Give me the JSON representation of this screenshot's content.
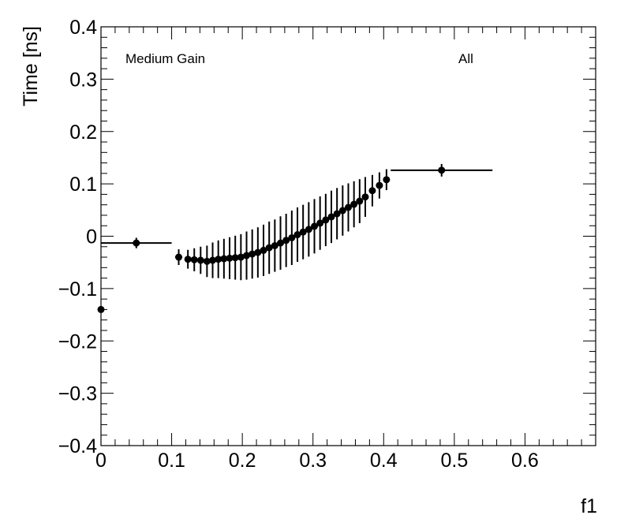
{
  "chart_data": {
    "type": "scatter",
    "xlabel": "f1",
    "ylabel": "Time [ns]",
    "xlim": [
      0,
      0.7
    ],
    "ylim": [
      -0.4,
      0.4
    ],
    "x_ticks": [
      "0",
      "0.1",
      "0.2",
      "0.3",
      "0.4",
      "0.5",
      "0.6"
    ],
    "x_tick_values": [
      0,
      0.1,
      0.2,
      0.3,
      0.4,
      0.5,
      0.6
    ],
    "y_ticks": [
      "0.4",
      "0.3",
      "0.2",
      "0.1",
      "0",
      "−0.1",
      "−0.2",
      "−0.3",
      "−0.4"
    ],
    "y_tick_values": [
      0.4,
      0.3,
      0.2,
      0.1,
      0,
      -0.1,
      -0.2,
      -0.3,
      -0.4
    ],
    "annotations": {
      "left": "Medium Gain",
      "right": "All"
    },
    "grid": false,
    "points": [
      {
        "x": 0.0,
        "y": -0.14,
        "xerr": [
          0,
          0
        ],
        "yerr": 0
      },
      {
        "x": 0.05,
        "y": -0.013,
        "xerr": [
          0.05,
          0.05
        ],
        "yerr": 0.01
      },
      {
        "x": 0.11,
        "y": -0.04,
        "xerr": [
          0.005,
          0.005
        ],
        "yerr": 0.015
      },
      {
        "x": 0.123,
        "y": -0.044,
        "xerr": [
          0,
          0
        ],
        "yerr": 0.018
      },
      {
        "x": 0.132,
        "y": -0.045,
        "xerr": [
          0,
          0
        ],
        "yerr": 0.022
      },
      {
        "x": 0.141,
        "y": -0.046,
        "xerr": [
          0,
          0
        ],
        "yerr": 0.026
      },
      {
        "x": 0.15,
        "y": -0.048,
        "xerr": [
          0,
          0
        ],
        "yerr": 0.03
      },
      {
        "x": 0.158,
        "y": -0.046,
        "xerr": [
          0,
          0
        ],
        "yerr": 0.034
      },
      {
        "x": 0.166,
        "y": -0.044,
        "xerr": [
          0,
          0
        ],
        "yerr": 0.036
      },
      {
        "x": 0.174,
        "y": -0.043,
        "xerr": [
          0,
          0
        ],
        "yerr": 0.038
      },
      {
        "x": 0.182,
        "y": -0.042,
        "xerr": [
          0,
          0
        ],
        "yerr": 0.04
      },
      {
        "x": 0.19,
        "y": -0.041,
        "xerr": [
          0,
          0
        ],
        "yerr": 0.042
      },
      {
        "x": 0.198,
        "y": -0.04,
        "xerr": [
          0,
          0
        ],
        "yerr": 0.044
      },
      {
        "x": 0.206,
        "y": -0.037,
        "xerr": [
          0,
          0
        ],
        "yerr": 0.046
      },
      {
        "x": 0.214,
        "y": -0.034,
        "xerr": [
          0,
          0
        ],
        "yerr": 0.047
      },
      {
        "x": 0.222,
        "y": -0.031,
        "xerr": [
          0,
          0
        ],
        "yerr": 0.048
      },
      {
        "x": 0.23,
        "y": -0.027,
        "xerr": [
          0,
          0
        ],
        "yerr": 0.049
      },
      {
        "x": 0.238,
        "y": -0.022,
        "xerr": [
          0,
          0
        ],
        "yerr": 0.05
      },
      {
        "x": 0.246,
        "y": -0.018,
        "xerr": [
          0,
          0
        ],
        "yerr": 0.05
      },
      {
        "x": 0.254,
        "y": -0.013,
        "xerr": [
          0,
          0
        ],
        "yerr": 0.051
      },
      {
        "x": 0.262,
        "y": -0.008,
        "xerr": [
          0,
          0
        ],
        "yerr": 0.051
      },
      {
        "x": 0.27,
        "y": -0.003,
        "xerr": [
          0,
          0
        ],
        "yerr": 0.052
      },
      {
        "x": 0.278,
        "y": 0.003,
        "xerr": [
          0,
          0
        ],
        "yerr": 0.052
      },
      {
        "x": 0.286,
        "y": 0.008,
        "xerr": [
          0,
          0
        ],
        "yerr": 0.052
      },
      {
        "x": 0.294,
        "y": 0.013,
        "xerr": [
          0,
          0
        ],
        "yerr": 0.052
      },
      {
        "x": 0.302,
        "y": 0.019,
        "xerr": [
          0,
          0
        ],
        "yerr": 0.052
      },
      {
        "x": 0.31,
        "y": 0.025,
        "xerr": [
          0,
          0
        ],
        "yerr": 0.051
      },
      {
        "x": 0.318,
        "y": 0.031,
        "xerr": [
          0,
          0
        ],
        "yerr": 0.05
      },
      {
        "x": 0.326,
        "y": 0.037,
        "xerr": [
          0,
          0
        ],
        "yerr": 0.05
      },
      {
        "x": 0.334,
        "y": 0.043,
        "xerr": [
          0,
          0
        ],
        "yerr": 0.049
      },
      {
        "x": 0.342,
        "y": 0.049,
        "xerr": [
          0,
          0
        ],
        "yerr": 0.048
      },
      {
        "x": 0.35,
        "y": 0.055,
        "xerr": [
          0,
          0
        ],
        "yerr": 0.046
      },
      {
        "x": 0.358,
        "y": 0.061,
        "xerr": [
          0,
          0
        ],
        "yerr": 0.044
      },
      {
        "x": 0.366,
        "y": 0.067,
        "xerr": [
          0,
          0
        ],
        "yerr": 0.042
      },
      {
        "x": 0.374,
        "y": 0.075,
        "xerr": [
          0,
          0
        ],
        "yerr": 0.038
      },
      {
        "x": 0.384,
        "y": 0.087,
        "xerr": [
          0,
          0
        ],
        "yerr": 0.03
      },
      {
        "x": 0.394,
        "y": 0.097,
        "xerr": [
          0,
          0
        ],
        "yerr": 0.025
      },
      {
        "x": 0.404,
        "y": 0.108,
        "xerr": [
          0.004,
          0.004
        ],
        "yerr": 0.02
      },
      {
        "x": 0.482,
        "y": 0.126,
        "xerr": [
          0.072,
          0.072
        ],
        "yerr": 0.012
      }
    ]
  }
}
